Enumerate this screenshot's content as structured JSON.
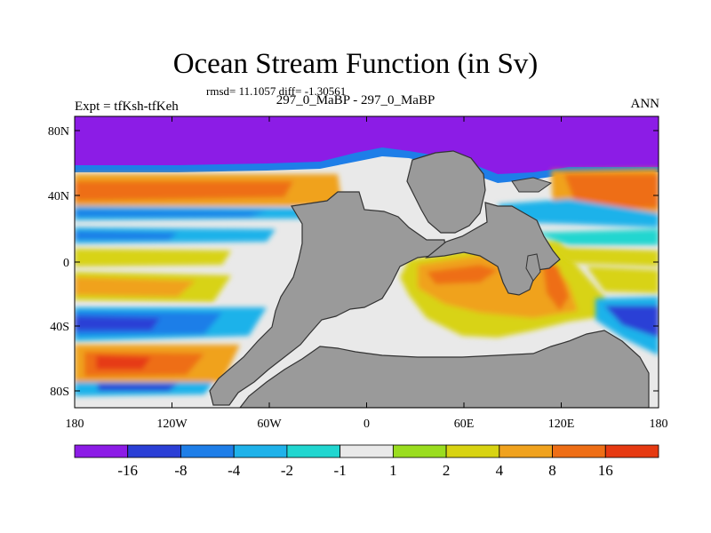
{
  "title": "Ocean Stream Function (in Sv)",
  "stats": "rmsd= 11.1057 diff= -1.30561",
  "subtitle": "297_0_MaBP - 297_0_MaBP",
  "left_label": "Expt = tfKsh-tfKeh",
  "right_label": "ANN",
  "map": {
    "x_ticks": [
      "180",
      "120W",
      "60W",
      "0",
      "60E",
      "120E",
      "180"
    ],
    "y_ticks": [
      "80N",
      "40N",
      "0",
      "40S",
      "80S"
    ]
  },
  "colorbar": {
    "labels": [
      "-16",
      "-8",
      "-4",
      "-2",
      "-1",
      "1",
      "2",
      "4",
      "8",
      "16"
    ],
    "colors": [
      "#8c1ce6",
      "#2b3fd6",
      "#1e7ee8",
      "#1fb2ea",
      "#21d6d0",
      "#e9e9e9",
      "#9add1f",
      "#d8d312",
      "#f0a21e",
      "#ee6e16",
      "#e63a12"
    ]
  },
  "palette": {
    "land": "#9a9a9a",
    "land_outline": "#333333"
  }
}
